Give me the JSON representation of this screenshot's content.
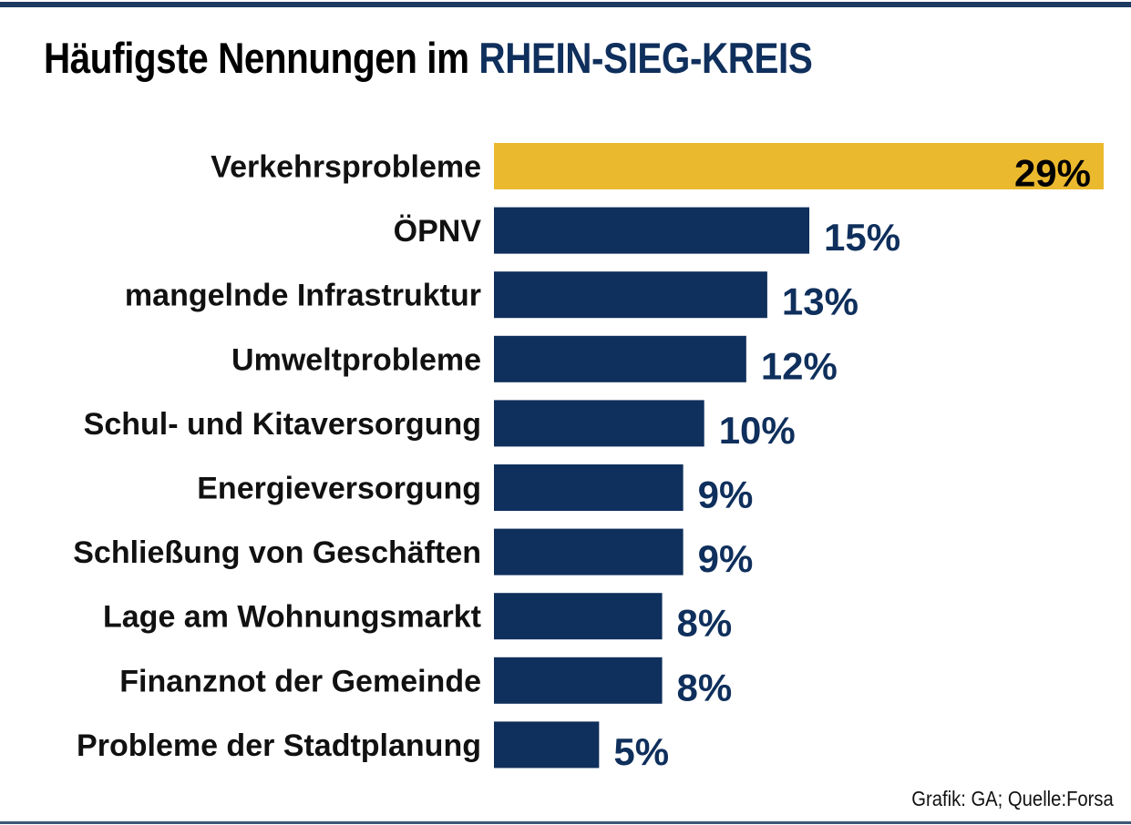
{
  "title": {
    "prefix": "Häufigste Nennungen im",
    "highlight": "RHEIN-SIEG-KREIS"
  },
  "source": "Grafik: GA; Quelle:Forsa",
  "colors": {
    "highlight_bar": "#ebb92e",
    "bar": "#0f2f5c",
    "highlight_value_text": "#000000",
    "value_text": "#0f2f5c",
    "title_highlight": "#0f2f5c",
    "rule": "#1d3a60"
  },
  "chart_data": {
    "type": "bar",
    "orientation": "horizontal",
    "title": "Häufigste Nennungen im RHEIN-SIEG-KREIS",
    "xlabel": "",
    "ylabel": "",
    "unit": "%",
    "xlim": [
      0,
      29
    ],
    "grid": false,
    "categories": [
      "Verkehrsprobleme",
      "ÖPNV",
      "mangelnde Infrastruktur",
      "Umweltprobleme",
      "Schul- und Kitaversorgung",
      "Energieversorgung",
      "Schließung von Geschäften",
      "Lage am Wohnungsmarkt",
      "Finanznot der Gemeinde",
      "Probleme der Stadtplanung"
    ],
    "values": [
      29,
      15,
      13,
      12,
      10,
      9,
      9,
      8,
      8,
      5
    ],
    "value_labels": [
      "29%",
      "15%",
      "13%",
      "12%",
      "10%",
      "9%",
      "9%",
      "8%",
      "8%",
      "5%"
    ],
    "highlighted_index": 0,
    "source": "Grafik: GA; Quelle:Forsa"
  }
}
